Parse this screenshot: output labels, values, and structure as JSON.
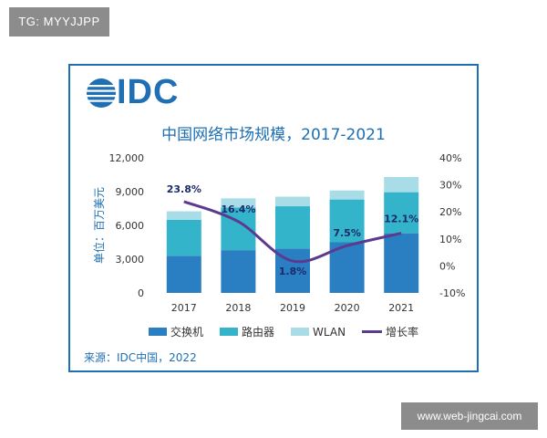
{
  "watermark_left": "TG: MYYJJPP",
  "watermark_right": "www.web-jingcai.com",
  "logo_text": "IDC",
  "source": "来源：IDC中国，2022",
  "colors": {
    "switch": "#2a7fc2",
    "router": "#34b4cb",
    "wlan": "#a8dde8",
    "growth": "#5b3a8f",
    "brand": "#1e6fb4"
  },
  "chart_data": {
    "type": "bar",
    "title": "中国网络市场规模，2017-2021",
    "ylabel": "单位：百万美元",
    "categories": [
      "2017",
      "2018",
      "2019",
      "2020",
      "2021"
    ],
    "series": [
      {
        "name": "交换机",
        "values": [
          3300,
          3800,
          3950,
          4500,
          5300
        ]
      },
      {
        "name": "路由器",
        "values": [
          3200,
          3800,
          3750,
          3800,
          3650
        ]
      },
      {
        "name": "WLAN",
        "values": [
          750,
          800,
          850,
          800,
          1350
        ]
      }
    ],
    "line_series": {
      "name": "增长率",
      "values": [
        23.8,
        16.4,
        1.8,
        7.5,
        12.1
      ],
      "labels": [
        "23.8%",
        "16.4%",
        "1.8%",
        "7.5%",
        "12.1%"
      ]
    },
    "ylim": [
      0,
      12000
    ],
    "y_ticks": [
      "0",
      "3,000",
      "6,000",
      "9,000",
      "12,000"
    ],
    "y2lim": [
      -10,
      40
    ],
    "y2_ticks": [
      "-10%",
      "0%",
      "10%",
      "20%",
      "30%",
      "40%"
    ],
    "legend_position": "bottom"
  }
}
